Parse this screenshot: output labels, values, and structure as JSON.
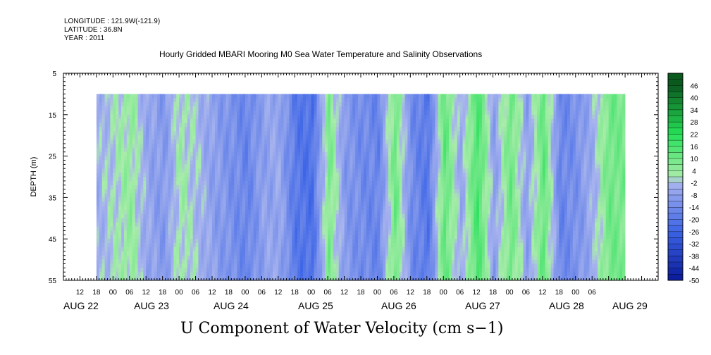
{
  "header": {
    "longitude": "LONGITUDE : 121.9W(-121.9)",
    "latitude": "LATITUDE : 36.8N",
    "year": "YEAR : 2011"
  },
  "chart_data": {
    "type": "heatmap",
    "title": "Hourly Gridded MBARI Mooring M0 Sea Water Temperature and Salinity Observations",
    "xlabel": "U Component of Water Velocity (cm s−1)",
    "ylabel": "DEPTH (m)",
    "ylim": [
      55,
      5
    ],
    "y_ticks": [
      "5",
      "15",
      "25",
      "35",
      "45",
      "55"
    ],
    "data_depth_range": [
      10,
      55
    ],
    "x_hour_ticks": [
      "12",
      "18",
      "00",
      "06",
      "12",
      "18",
      "00",
      "06",
      "12",
      "18",
      "00",
      "06",
      "12",
      "18",
      "00",
      "06",
      "12",
      "18",
      "00",
      "06",
      "12",
      "18",
      "00",
      "06",
      "12",
      "18",
      "00",
      "06",
      "12",
      "18",
      "00",
      "06"
    ],
    "x_day_labels": [
      "AUG 22",
      "AUG 23",
      "AUG 24",
      "AUG 25",
      "AUG 26",
      "AUG 27",
      "AUG 28",
      "AUG 29"
    ],
    "colorbar": {
      "labels": [
        "46",
        "40",
        "34",
        "28",
        "22",
        "16",
        "10",
        "4",
        "-2",
        "-8",
        "-14",
        "-20",
        "-26",
        "-32",
        "-38",
        "-44",
        "-50"
      ],
      "colors": {
        "neg_strong": "#0a1a9a",
        "neg_mid": "#3c64e6",
        "neg_weak": "#a8b4ee",
        "pos_weak": "#a8ecaa",
        "pos_mid": "#26e058",
        "pos_strong": "#0a5a1e"
      }
    },
    "time_series_approx": {
      "note_hours": [
        18,
        24,
        30,
        36,
        42,
        48,
        54,
        60,
        66,
        72,
        78,
        84,
        90,
        96,
        102,
        108,
        114,
        120,
        126,
        132,
        138,
        144,
        150,
        156,
        162,
        168,
        174,
        180,
        186,
        192,
        198,
        204,
        210
      ],
      "u_mean": [
        -4,
        0,
        4,
        -6,
        -10,
        2,
        -2,
        -8,
        -12,
        -16,
        -8,
        -6,
        -20,
        -22,
        8,
        -10,
        -14,
        -16,
        10,
        -14,
        -20,
        12,
        -6,
        16,
        -8,
        10,
        -8,
        12,
        -16,
        -12,
        -4,
        10,
        8
      ]
    }
  }
}
